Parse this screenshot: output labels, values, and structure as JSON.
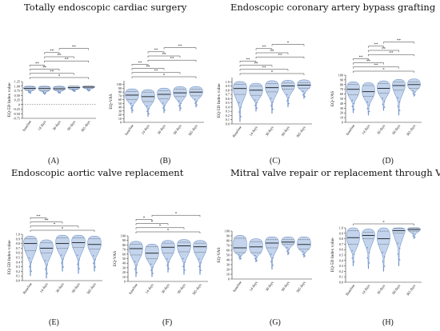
{
  "section_titles": {
    "tecs": "Totally endoscopic cardiac surgery",
    "ecabg": "Endoscopic coronary artery bypass grafting",
    "eavr": "Endoscopic aortic valve replacement",
    "mvats": "Mitral valve repair or replacement through VATS"
  },
  "chart_data": [
    {
      "id": "A",
      "label": "(A)",
      "type": "violin",
      "ylabel": "EQ-5D Index value",
      "ylim": [
        -0.75,
        1.25
      ],
      "yticks": [
        "-0.75",
        "-0.50",
        "-0.25",
        "0",
        "0.25",
        "0.50",
        "0.75",
        "1.00",
        "1.25"
      ],
      "categories": [
        "baseline",
        "14 days",
        "30 days",
        "90 days",
        "365 days"
      ],
      "medians": [
        0.88,
        0.87,
        0.86,
        0.92,
        0.95
      ],
      "q1": [
        0.8,
        0.75,
        0.78,
        0.85,
        0.9
      ],
      "q3": [
        0.97,
        0.96,
        0.95,
        1.0,
        1.0
      ],
      "mins": [
        0.6,
        0.55,
        0.6,
        0.7,
        0.72
      ],
      "zero_line": true,
      "significance_brackets": [
        "*",
        "**",
        "**",
        "**",
        "**",
        "**",
        "**",
        "**"
      ]
    },
    {
      "id": "B",
      "label": "(B)",
      "type": "violin",
      "ylabel": "EQ-VAS",
      "ylim": [
        0,
        110
      ],
      "yticks": [
        "0",
        "10",
        "20",
        "30",
        "40",
        "50",
        "60",
        "70",
        "80",
        "90",
        "100"
      ],
      "categories": [
        "baseline",
        "14 days",
        "30 days",
        "90 days",
        "365 days"
      ],
      "medians": [
        72,
        68,
        74,
        78,
        80
      ],
      "q1": [
        60,
        55,
        62,
        68,
        70
      ],
      "q3": [
        82,
        80,
        84,
        88,
        88
      ],
      "mins": [
        25,
        15,
        25,
        30,
        40
      ],
      "significance_brackets": [
        "*",
        "**",
        "**",
        "**",
        "**",
        "**",
        "**",
        "**"
      ]
    },
    {
      "id": "C",
      "label": "(C)",
      "type": "violin",
      "ylabel": "EQ-5D Index value",
      "ylim": [
        0,
        1.1
      ],
      "yticks": [
        "0.0",
        "0.1",
        "0.2",
        "0.3",
        "0.4",
        "0.5",
        "0.6",
        "0.7",
        "0.8",
        "0.9",
        "1.0"
      ],
      "categories": [
        "Baseline",
        "14 days",
        "30 days",
        "90 days",
        "365 days"
      ],
      "medians": [
        0.84,
        0.8,
        0.86,
        0.9,
        0.92
      ],
      "q1": [
        0.7,
        0.68,
        0.76,
        0.82,
        0.85
      ],
      "q3": [
        0.94,
        0.9,
        0.96,
        0.97,
        0.98
      ],
      "mins": [
        0.05,
        0.3,
        0.25,
        0.4,
        0.6
      ],
      "significance_brackets": [
        "*",
        "**",
        "**",
        "**",
        "**",
        "**",
        "**",
        "*"
      ]
    },
    {
      "id": "D",
      "label": "(D)",
      "type": "violin",
      "ylabel": "EQ-VAS",
      "ylim": [
        0,
        100
      ],
      "yticks": [
        "0",
        "10",
        "20",
        "30",
        "40",
        "50",
        "60",
        "70",
        "80",
        "90",
        "100"
      ],
      "categories": [
        "baseline",
        "14 days",
        "30 days",
        "90 days",
        "365 days"
      ],
      "medians": [
        70,
        65,
        72,
        78,
        80
      ],
      "q1": [
        58,
        55,
        62,
        68,
        72
      ],
      "q3": [
        80,
        78,
        82,
        85,
        86
      ],
      "mins": [
        20,
        15,
        25,
        15,
        55
      ],
      "significance_brackets": [
        "*",
        "**",
        "**",
        "**",
        "**",
        "**",
        "**",
        "**"
      ]
    },
    {
      "id": "E",
      "label": "(E)",
      "type": "violin",
      "ylabel": "EQ-5D Index value",
      "ylim": [
        0,
        1.0
      ],
      "yticks": [
        "0.0",
        "0.1",
        "0.2",
        "0.3",
        "0.4",
        "0.5",
        "0.6",
        "0.7",
        "0.8",
        "0.9",
        "1.0"
      ],
      "categories": [
        "Baseline",
        "14 days",
        "30 days",
        "90 days",
        "365 days"
      ],
      "medians": [
        0.8,
        0.7,
        0.8,
        0.82,
        0.78
      ],
      "q1": [
        0.65,
        0.6,
        0.7,
        0.72,
        0.68
      ],
      "q3": [
        0.9,
        0.82,
        0.92,
        0.92,
        0.9
      ],
      "mins": [
        0.1,
        0.05,
        0.2,
        0.15,
        0.2
      ],
      "significance_brackets": [
        "*",
        "*",
        "**",
        "**"
      ]
    },
    {
      "id": "F",
      "label": "(F)",
      "type": "violin",
      "ylabel": "EQ-VAS",
      "ylim": [
        0,
        100
      ],
      "yticks": [
        "0",
        "10",
        "20",
        "30",
        "40",
        "50",
        "60",
        "70",
        "80",
        "90",
        "100"
      ],
      "categories": [
        "baseline",
        "14 days",
        "30 days",
        "90 days",
        "365 days"
      ],
      "medians": [
        72,
        62,
        75,
        78,
        76
      ],
      "q1": [
        58,
        50,
        62,
        65,
        64
      ],
      "q3": [
        82,
        76,
        84,
        86,
        84
      ],
      "mins": [
        10,
        10,
        20,
        15,
        15
      ],
      "significance_brackets": [
        "*",
        "*",
        "*",
        "*",
        "*"
      ]
    },
    {
      "id": "G",
      "label": "(G)",
      "type": "violin",
      "ylabel": "EQ-VAS",
      "ylim": [
        0,
        100
      ],
      "yticks": [
        "0",
        "10",
        "20",
        "30",
        "40",
        "50",
        "60",
        "70",
        "80",
        "90",
        "100"
      ],
      "categories": [
        "baseline",
        "14 days",
        "30 days",
        "90 days",
        "365 days"
      ],
      "medians": [
        65,
        67,
        75,
        77,
        72
      ],
      "q1": [
        55,
        55,
        65,
        72,
        62
      ],
      "q3": [
        85,
        78,
        82,
        82,
        82
      ],
      "mins": [
        40,
        35,
        20,
        50,
        45
      ],
      "significance_brackets": []
    },
    {
      "id": "H",
      "label": "(H)",
      "type": "violin",
      "ylabel": "EQ-5D Index value",
      "ylim": [
        0,
        1.0
      ],
      "yticks": [
        "0.0",
        "0.1",
        "0.2",
        "0.3",
        "0.4",
        "0.5",
        "0.6",
        "0.7",
        "0.8",
        "0.9",
        "1.0"
      ],
      "categories": [
        "Baseline",
        "14 days",
        "30 days",
        "90 days",
        "365 days"
      ],
      "medians": [
        0.82,
        0.86,
        0.8,
        0.95,
        0.97
      ],
      "q1": [
        0.7,
        0.8,
        0.7,
        0.9,
        0.94
      ],
      "q3": [
        0.95,
        0.92,
        0.94,
        0.99,
        1.0
      ],
      "mins": [
        0.3,
        0.25,
        0.2,
        0.3,
        0.8
      ],
      "significance_brackets": [
        "*"
      ]
    }
  ]
}
